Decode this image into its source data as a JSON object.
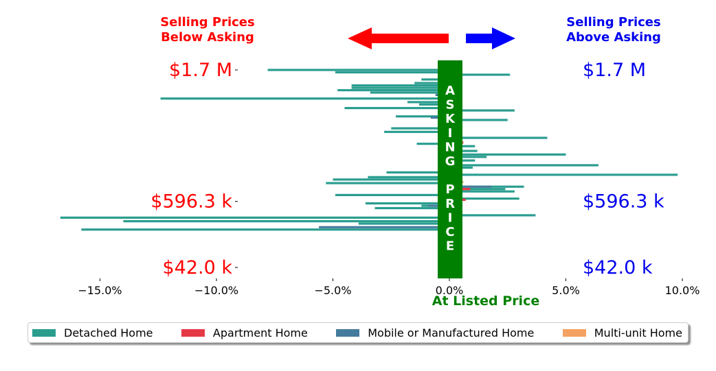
{
  "chart_data": {
    "type": "bar",
    "orientation": "horizontal",
    "title": "",
    "xlabel": "At Listed Price",
    "ylabel": "",
    "xlim": [
      -17.0,
      10.0
    ],
    "xticks": [
      "−15.0%",
      "−10.0%",
      "−5.0%",
      "0.0%",
      "5.0%",
      "10.0%"
    ],
    "xtick_values": [
      -15,
      -10,
      -5,
      0,
      5,
      10
    ],
    "ytick_labels_left": [
      "$1.7 M",
      "$596.3 k",
      "$42.0 k"
    ],
    "ytick_labels_right": [
      "$1.7 M",
      "$596.3 k",
      "$42.0 k"
    ],
    "ytick_values": [
      1700000,
      596300,
      42000
    ],
    "ylim": [
      0,
      1800000
    ],
    "left_header": "Selling Prices\nBelow Asking",
    "right_header": "Selling Prices\nAbove Asking",
    "center_band_text": "ASKING PRICE",
    "legend_position": "bottom-center",
    "colors": {
      "left_label": "#ff0000",
      "right_label": "#0000ee",
      "center_band": "#008000",
      "xlabel": "#008000",
      "arrow_left": "#ff0000",
      "arrow_right": "#0000ff"
    },
    "series": [
      {
        "name": "Detached Home",
        "color": "#2a9d8f",
        "points": [
          {
            "price": 1700000,
            "pct": -7.8
          },
          {
            "price": 1680000,
            "pct": -4.9
          },
          {
            "price": 1660000,
            "pct": 2.6
          },
          {
            "price": 1620000,
            "pct": -1.2
          },
          {
            "price": 1590000,
            "pct": -1.5
          },
          {
            "price": 1570000,
            "pct": -4.2
          },
          {
            "price": 1550000,
            "pct": -4.2
          },
          {
            "price": 1530000,
            "pct": -4.8
          },
          {
            "price": 1510000,
            "pct": -3.4
          },
          {
            "price": 1460000,
            "pct": -12.4
          },
          {
            "price": 1430000,
            "pct": -1.8
          },
          {
            "price": 1410000,
            "pct": -1.3
          },
          {
            "price": 1380000,
            "pct": -4.5
          },
          {
            "price": 1360000,
            "pct": 2.8
          },
          {
            "price": 1310000,
            "pct": -2.3
          },
          {
            "price": 1280000,
            "pct": 2.5
          },
          {
            "price": 1210000,
            "pct": -2.5
          },
          {
            "price": 1180000,
            "pct": -2.8
          },
          {
            "price": 1130000,
            "pct": 4.2
          },
          {
            "price": 1080000,
            "pct": -1.4
          },
          {
            "price": 1060000,
            "pct": 1.1
          },
          {
            "price": 1020000,
            "pct": 1.2
          },
          {
            "price": 990000,
            "pct": 5.0
          },
          {
            "price": 970000,
            "pct": 1.6
          },
          {
            "price": 940000,
            "pct": 1.1
          },
          {
            "price": 900000,
            "pct": 6.4
          },
          {
            "price": 880000,
            "pct": 1.0
          },
          {
            "price": 840000,
            "pct": -2.7
          },
          {
            "price": 820000,
            "pct": 9.8
          },
          {
            "price": 800000,
            "pct": -3.5
          },
          {
            "price": 780000,
            "pct": -5.0
          },
          {
            "price": 750000,
            "pct": -5.3
          },
          {
            "price": 720000,
            "pct": 3.2
          },
          {
            "price": 700000,
            "pct": 2.4
          },
          {
            "price": 680000,
            "pct": 2.8
          },
          {
            "price": 650000,
            "pct": -4.9
          },
          {
            "price": 620000,
            "pct": 3.0
          },
          {
            "price": 580000,
            "pct": -3.6
          },
          {
            "price": 560000,
            "pct": -1.2
          },
          {
            "price": 540000,
            "pct": -3.2
          },
          {
            "price": 480000,
            "pct": 3.7
          },
          {
            "price": 460000,
            "pct": -16.7
          },
          {
            "price": 430000,
            "pct": -14.0
          },
          {
            "price": 410000,
            "pct": -3.9
          },
          {
            "price": 360000,
            "pct": -15.8
          }
        ]
      },
      {
        "name": "Apartment Home",
        "color": "#e63946",
        "points": [
          {
            "price": 1090000,
            "pct": 0.6
          },
          {
            "price": 700000,
            "pct": 0.9
          },
          {
            "price": 610000,
            "pct": 0.7
          }
        ]
      },
      {
        "name": "Mobile or Manufactured Home",
        "color": "#457b9d",
        "points": [
          {
            "price": 1490000,
            "pct": -0.6
          },
          {
            "price": 1300000,
            "pct": -0.8
          },
          {
            "price": 720000,
            "pct": 1.8
          },
          {
            "price": 560000,
            "pct": -0.9
          },
          {
            "price": 380000,
            "pct": -5.6
          }
        ]
      },
      {
        "name": "Multi-unit Home",
        "color": "#f4a261",
        "points": [
          {
            "price": 1170000,
            "pct": 0.5
          },
          {
            "price": 760000,
            "pct": 0.6
          }
        ]
      }
    ]
  }
}
